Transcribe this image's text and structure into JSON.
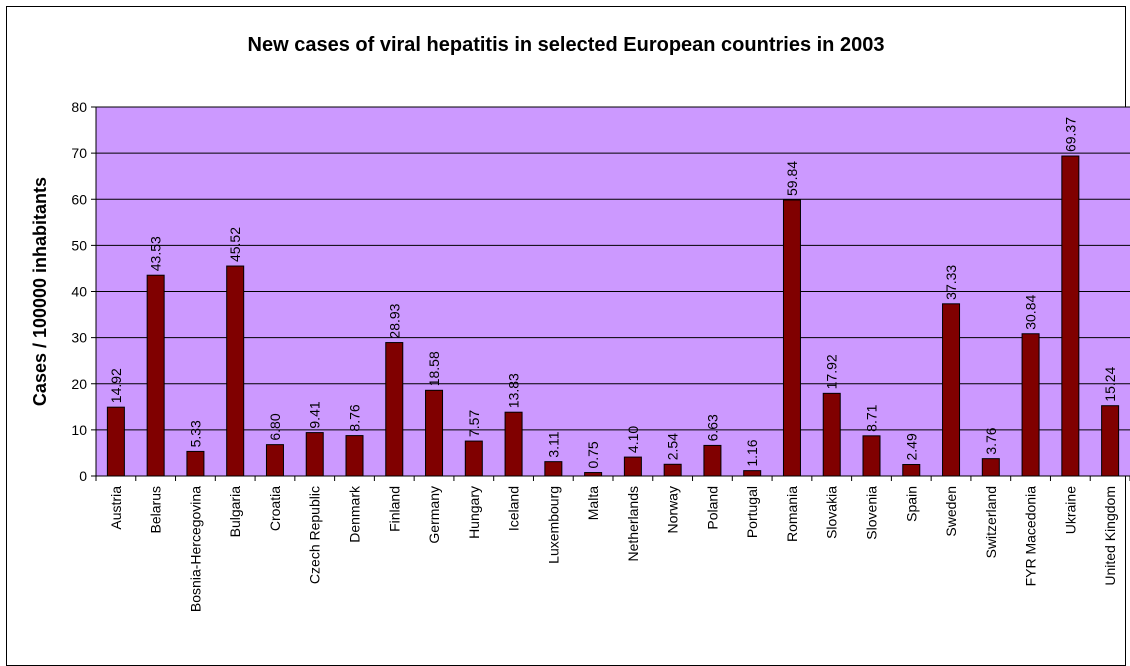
{
  "chart_data": {
    "type": "bar",
    "title": "New cases of viral hepatitis in selected European countries in 2003",
    "xlabel": "",
    "ylabel": "Cases / 100000 inhabitants",
    "ylim": [
      0,
      80
    ],
    "yticks": [
      0,
      10,
      20,
      30,
      40,
      50,
      60,
      70,
      80
    ],
    "grid": true,
    "colors": {
      "plot_bg": "#cc99ff",
      "bar": "#800000",
      "grid": "#000000"
    },
    "categories": [
      "Austria",
      "Belarus",
      "Bosnia-Hercegovina",
      "Bulgaria",
      "Croatia",
      "Czech Republic",
      "Denmark",
      "Finland",
      "Germany",
      "Hungary",
      "Iceland",
      "Luxembourg",
      "Malta",
      "Netherlands",
      "Norway",
      "Poland",
      "Portugal",
      "Romania",
      "Slovakia",
      "Slovenia",
      "Spain",
      "Sweden",
      "Switzerland",
      "FYR Macedonia",
      "Ukraine",
      "United Kingdom"
    ],
    "values": [
      14.92,
      43.53,
      5.33,
      45.52,
      6.8,
      9.41,
      8.76,
      28.93,
      18.58,
      7.57,
      13.83,
      3.11,
      0.75,
      4.1,
      2.54,
      6.63,
      1.16,
      59.84,
      17.92,
      8.71,
      2.49,
      37.33,
      3.76,
      30.84,
      69.37,
      15.24
    ],
    "data_labels": [
      "14.92",
      "43.53",
      "5.33",
      "45.52",
      "6.80",
      "9.41",
      "8.76",
      "28.93",
      "18.58",
      "7.57",
      "13.83",
      "3.11",
      "0.75",
      "4.10",
      "2.54",
      "6.63",
      "1.16",
      "59.84",
      "17.92",
      "8.71",
      "2.49",
      "37.33",
      "3.76",
      "30.84",
      "69.37",
      "15.24"
    ]
  }
}
